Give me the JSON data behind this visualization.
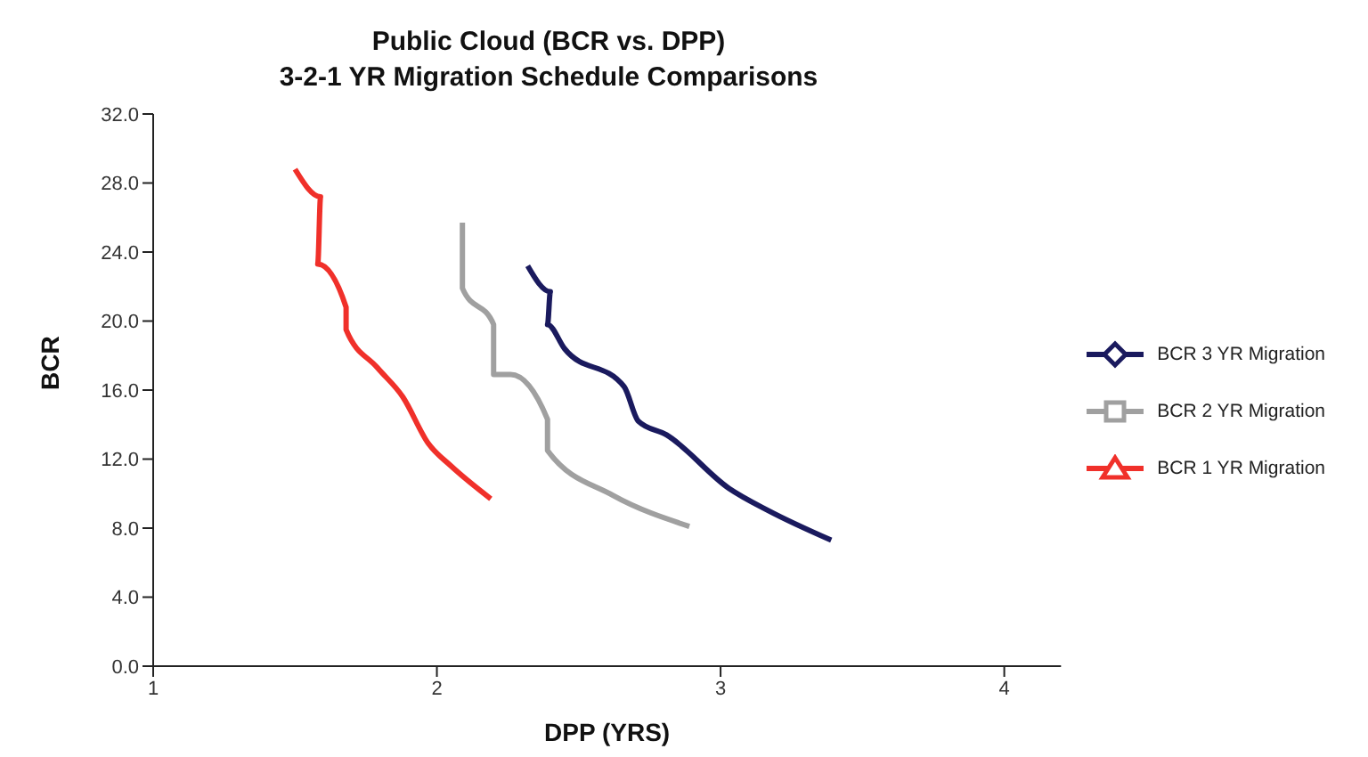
{
  "chart_data": {
    "type": "line",
    "title": "Public Cloud (BCR vs. DPP)",
    "subtitle": "3-2-1 YR Migration Schedule Comparisons",
    "xlabel": "DPP (YRS)",
    "ylabel": "BCR",
    "series": [
      {
        "name": "BCR 3 YR Migration",
        "color": "#1a1a5e",
        "x": [
          2.32,
          2.4,
          2.39,
          2.45,
          2.66,
          2.71,
          2.81,
          3.03,
          3.17,
          3.39
        ],
        "values": [
          23.2,
          21.7,
          19.8,
          18.4,
          16.2,
          14.2,
          13.4,
          10.3,
          9.0,
          7.3
        ]
      },
      {
        "name": "BCR 2 YR Migration",
        "color": "#a0a0a0",
        "x": [
          2.09,
          2.09,
          2.2,
          2.2,
          2.26,
          2.39,
          2.39,
          2.62,
          2.89
        ],
        "values": [
          25.7,
          21.9,
          19.8,
          16.9,
          16.9,
          14.3,
          12.5,
          9.9,
          8.1
        ]
      },
      {
        "name": "BCR 1 YR Migration",
        "color": "#f0302a",
        "x": [
          1.5,
          1.59,
          1.58,
          1.68,
          1.68,
          1.79,
          1.88,
          1.97,
          2.05,
          2.19
        ],
        "values": [
          28.8,
          27.2,
          23.3,
          20.8,
          19.5,
          17.3,
          15.6,
          12.9,
          11.6,
          9.7
        ]
      }
    ],
    "xlim": [
      1,
      4.2
    ],
    "xticks": [
      1,
      2,
      3,
      4
    ],
    "ylim": [
      0,
      32
    ],
    "yticks": [
      {
        "value": 0,
        "label": "0.0"
      },
      {
        "value": 4,
        "label": "4.0"
      },
      {
        "value": 8,
        "label": "8.0"
      },
      {
        "value": 12,
        "label": "12.0"
      },
      {
        "value": 16,
        "label": "16.0"
      },
      {
        "value": 20,
        "label": "20.0"
      },
      {
        "value": 24,
        "label": "24.0"
      },
      {
        "value": 28,
        "label": "28.0"
      },
      {
        "value": 32,
        "label": "32.0"
      }
    ],
    "grid": false,
    "legend": "right",
    "marker": "none",
    "line_style": "solid"
  }
}
